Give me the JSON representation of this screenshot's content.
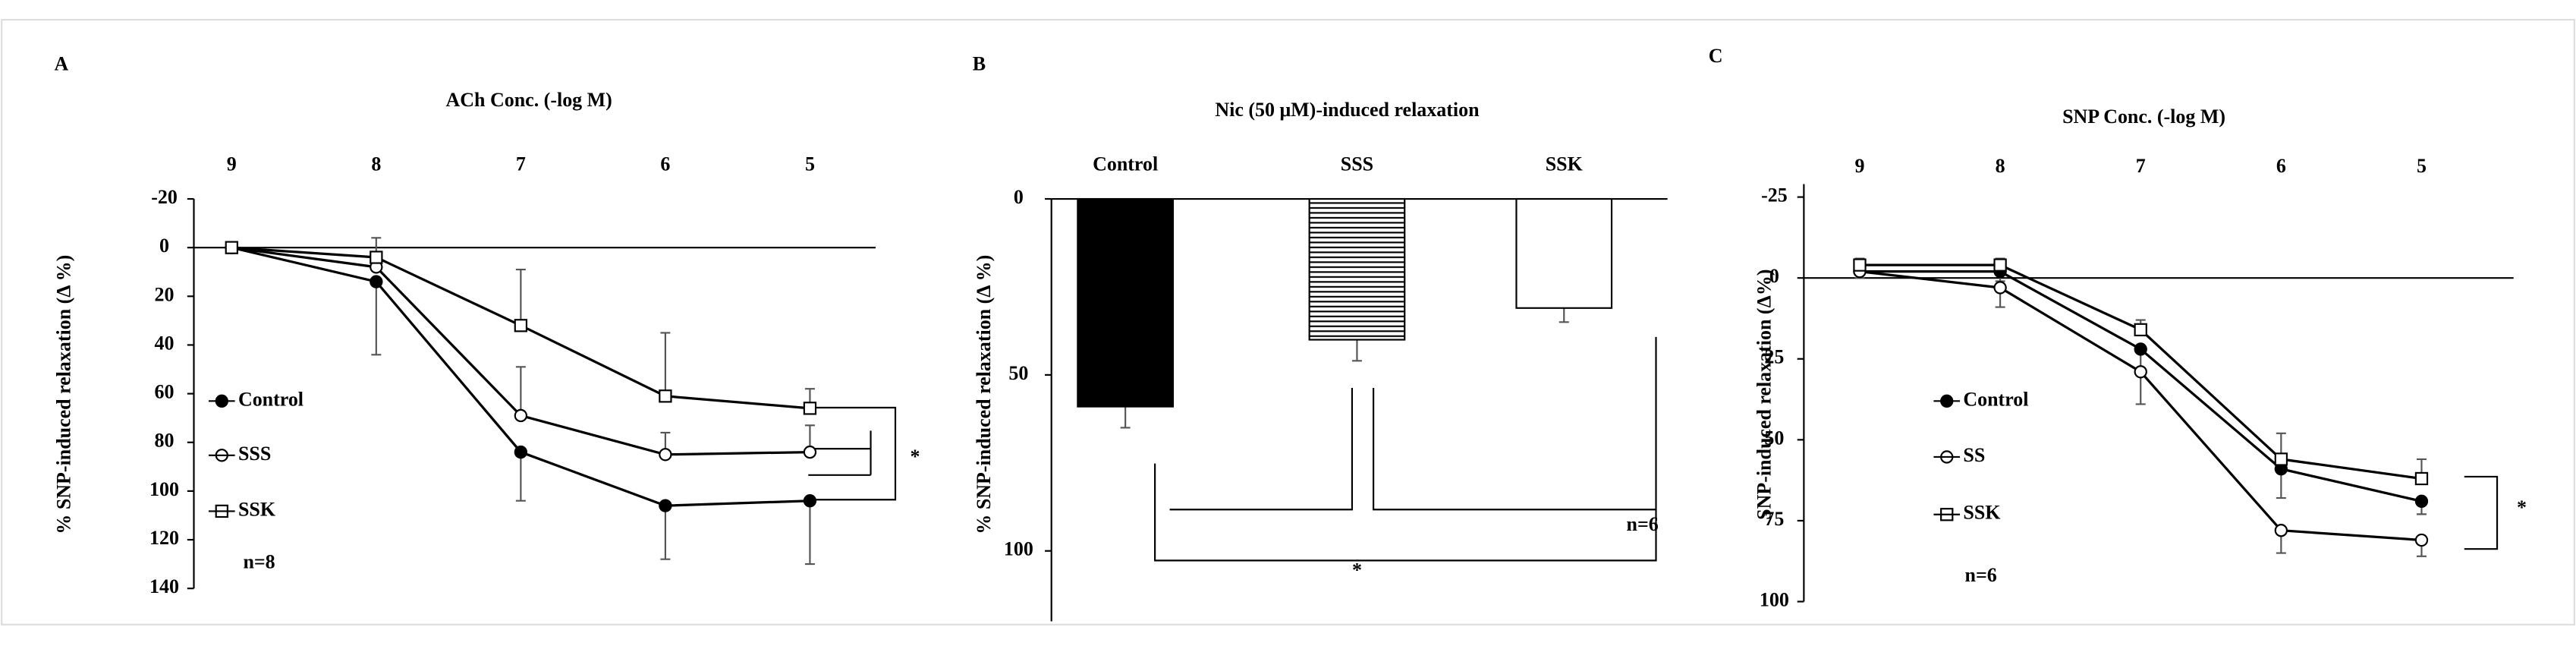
{
  "chart_data": [
    {
      "type": "line",
      "panel_label": "A",
      "title": "ACh Conc. (-log M)",
      "y_label": "% SNP-induced relaxation (Δ %)",
      "categories": [
        "9",
        "8",
        "7",
        "6",
        "5"
      ],
      "ylim": [
        -20,
        140
      ],
      "y_inverted": true,
      "yticks": [
        -20,
        0,
        20,
        40,
        60,
        80,
        100,
        120,
        140
      ],
      "legend": "left",
      "annotation": "n=8",
      "significance": "*",
      "series": [
        {
          "name": "Control",
          "color": "#000000",
          "marker": "filled-circle",
          "error_direction": "down",
          "values": [
            0,
            14,
            84,
            106,
            104
          ],
          "errors": [
            1,
            30,
            20,
            22,
            26
          ]
        },
        {
          "name": "SSS",
          "color": "#000000",
          "marker": "open-circle",
          "error_direction": "up",
          "values": [
            0,
            8,
            69,
            85,
            84
          ],
          "errors": [
            1,
            6,
            20,
            9,
            11
          ]
        },
        {
          "name": "SSK",
          "color": "#000000",
          "marker": "open-square",
          "error_direction": "up",
          "values": [
            0,
            4,
            32,
            61,
            66
          ],
          "errors": [
            1,
            8,
            23,
            26,
            8
          ]
        }
      ]
    },
    {
      "type": "bar",
      "panel_label": "B",
      "title": "Nic (50 μM)-induced relaxation",
      "y_label": "% SNP-induced relaxation (Δ %)",
      "categories": [
        "Control",
        "SSS",
        "SSK"
      ],
      "values": [
        59,
        40,
        31
      ],
      "errors": [
        6,
        6,
        4
      ],
      "bar_styles": [
        "solid",
        "hatch",
        "open"
      ],
      "ylim": [
        0,
        120
      ],
      "y_inverted": true,
      "yticks": [
        0,
        50,
        100
      ],
      "annotation": "n=6",
      "significance": "*"
    },
    {
      "type": "line",
      "panel_label": "C",
      "title": "SNP Conc. (-log M)",
      "y_label": "SNP-induced relaxation (Δ%)",
      "categories": [
        "9",
        "8",
        "7",
        "6",
        "5"
      ],
      "ylim": [
        -29,
        100
      ],
      "y_inverted": true,
      "yticks": [
        -25,
        0,
        25,
        50,
        75,
        100
      ],
      "legend": "left",
      "annotation": "n=6",
      "significance": "*",
      "series": [
        {
          "name": "Control",
          "color": "#000000",
          "marker": "filled-circle",
          "error_direction": "down",
          "values": [
            -2,
            -2,
            22,
            59,
            69
          ],
          "errors": [
            2,
            3,
            6,
            9,
            4
          ]
        },
        {
          "name": "SS",
          "color": "#000000",
          "marker": "open-circle",
          "error_direction": "down",
          "values": [
            -2,
            3,
            29,
            78,
            81
          ],
          "errors": [
            2,
            6,
            10,
            7,
            5
          ]
        },
        {
          "name": "SSK",
          "color": "#000000",
          "marker": "open-square",
          "error_direction": "up",
          "values": [
            -4,
            -4,
            16,
            56,
            62
          ],
          "errors": [
            2,
            2,
            3,
            8,
            6
          ]
        }
      ]
    }
  ]
}
